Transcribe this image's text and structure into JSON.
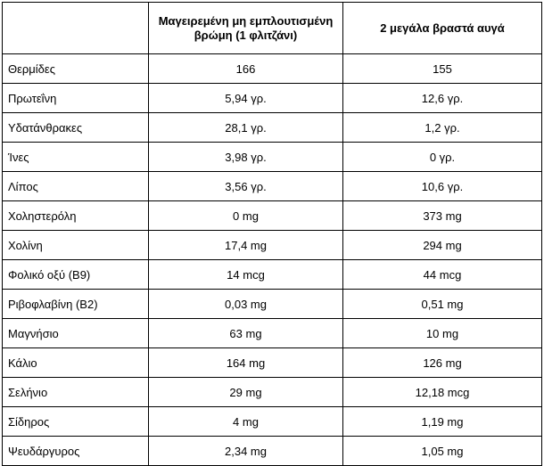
{
  "table": {
    "headers": [
      "",
      "Μαγειρεμένη μη εμπλουτισμένη βρώμη (1 φλιτζάνι)",
      "2 μεγάλα βραστά αυγά"
    ],
    "rows": [
      [
        "Θερμίδες",
        "166",
        "155"
      ],
      [
        "Πρωτεΐνη",
        "5,94 γρ.",
        "12,6 γρ."
      ],
      [
        "Υδατάνθρακες",
        "28,1 γρ.",
        "1,2 γρ."
      ],
      [
        "Ίνες",
        "3,98 γρ.",
        "0 γρ."
      ],
      [
        "Λίπος",
        "3,56 γρ.",
        "10,6 γρ."
      ],
      [
        "Χοληστερόλη",
        "0 mg",
        "373 mg"
      ],
      [
        "Χολίνη",
        "17,4 mg",
        "294 mg"
      ],
      [
        "Φολικό οξύ (B9)",
        "14 mcg",
        "44 mcg"
      ],
      [
        "Ριβοφλαβίνη (B2)",
        "0,03 mg",
        "0,51 mg"
      ],
      [
        "Μαγνήσιο",
        "63 mg",
        "10 mg"
      ],
      [
        "Κάλιο",
        "164 mg",
        "126 mg"
      ],
      [
        "Σελήνιο",
        "29 mg",
        "12,18 mcg"
      ],
      [
        "Σίδηρος",
        "4 mg",
        "1,19 mg"
      ],
      [
        "Ψευδάργυρος",
        "2,34 mg",
        "1,05 mg"
      ]
    ]
  }
}
